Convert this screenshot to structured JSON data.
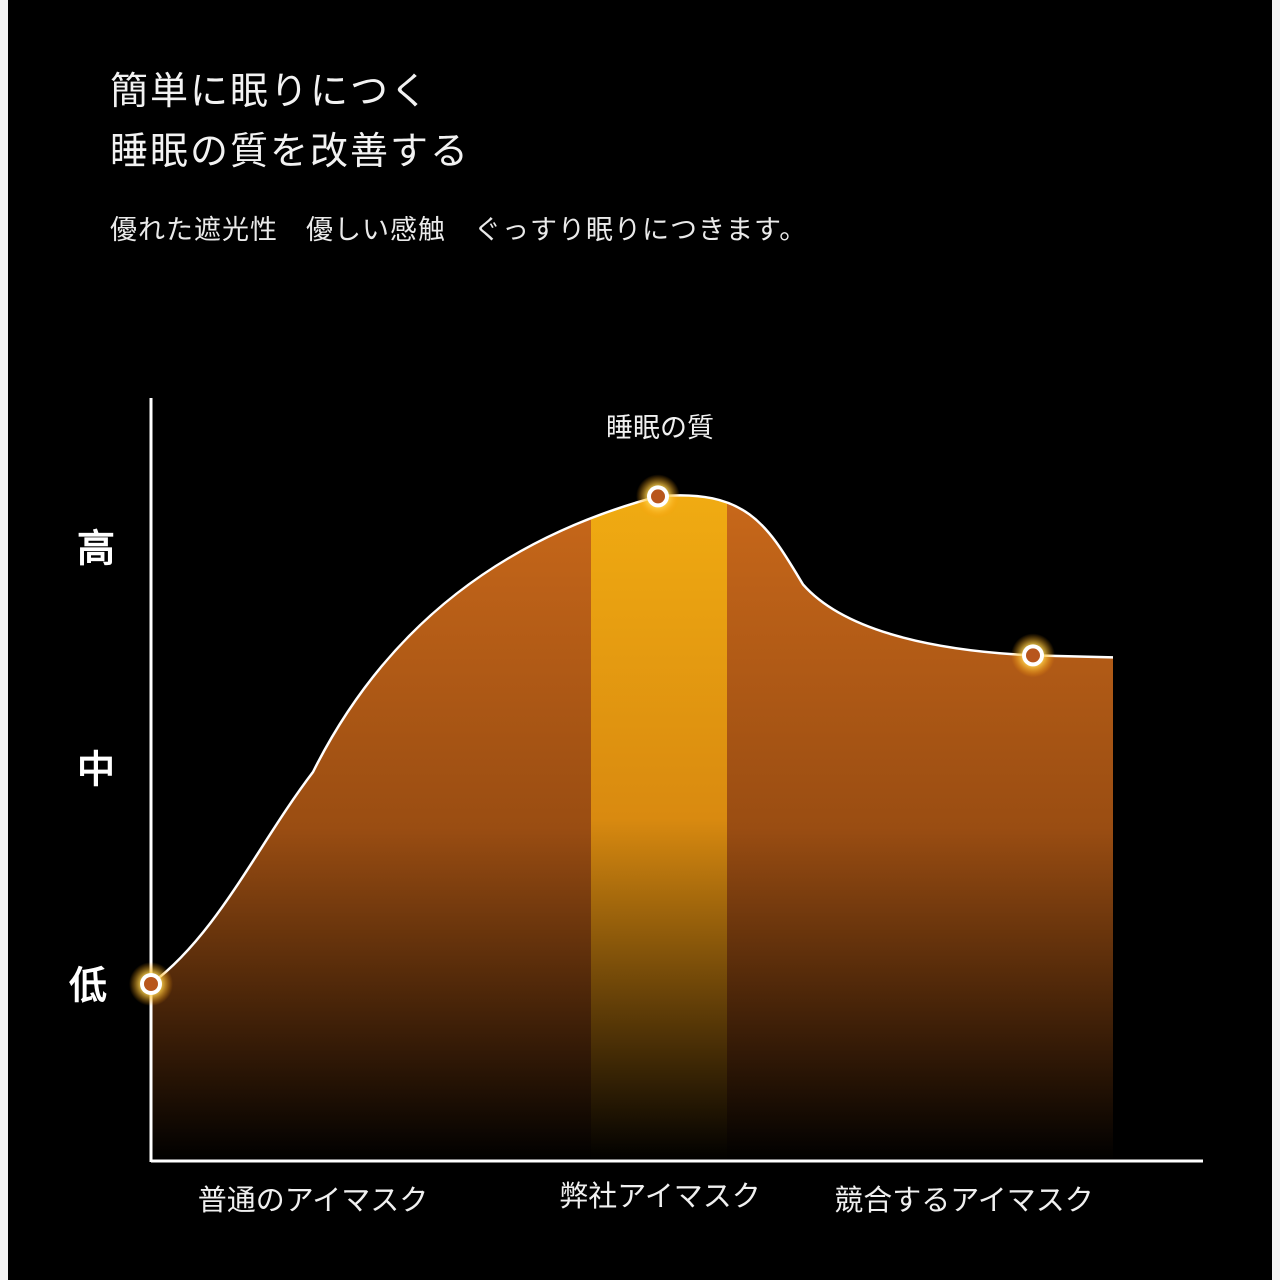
{
  "header": {
    "title_line1": "簡単に眠りにつく",
    "title_line2": "睡眠の質を改善する",
    "subtitle": "優れた遮光性　優しい感触　ぐっすり眠りにつきます。"
  },
  "chart_data": {
    "type": "area",
    "categories": [
      "普通のアイマスク",
      "弊社アイマスク",
      "競合するアイマスク"
    ],
    "y_tick_labels": [
      "低",
      "中",
      "高"
    ],
    "y_levels": {
      "low": 0,
      "mid": 1,
      "high": 2
    },
    "values": [
      0,
      2.3,
      1.55
    ],
    "annotation": "睡眠の質",
    "highlight_category": "弊社アイマスク",
    "grid": false,
    "colors": {
      "fill_top": "#c8681a",
      "fill_bottom": "#000000",
      "highlight": "#f5b514",
      "line": "#ffffff",
      "axis": "#ffffff"
    }
  }
}
